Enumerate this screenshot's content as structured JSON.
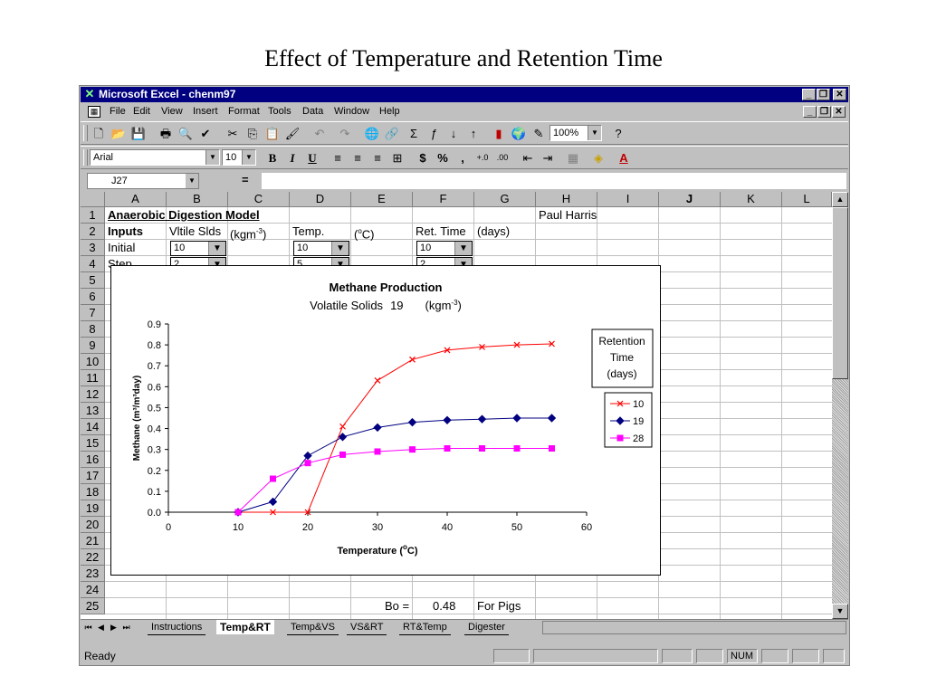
{
  "slide_title": "Effect of Temperature and Retention Time",
  "window": {
    "title": "Microsoft Excel - chenm97"
  },
  "menu": [
    "File",
    "Edit",
    "View",
    "Insert",
    "Format",
    "Tools",
    "Data",
    "Window",
    "Help"
  ],
  "toolbar": {
    "zoom": "100%",
    "font": "Arial",
    "font_size": "10"
  },
  "formula_bar": {
    "name_box": "J27",
    "equals": "="
  },
  "columns": [
    "A",
    "B",
    "C",
    "D",
    "E",
    "F",
    "G",
    "H",
    "I",
    "J",
    "K",
    "L"
  ],
  "active_column": "J",
  "rows": [
    "1",
    "2",
    "3",
    "4",
    "5",
    "6",
    "7",
    "8",
    "9",
    "10",
    "11",
    "12",
    "13",
    "14",
    "15",
    "16",
    "17",
    "18",
    "19",
    "20",
    "21",
    "22",
    "23",
    "24",
    "25"
  ],
  "cells": {
    "a1": "Anaerobic Digestion Model",
    "h1": "Paul Harris",
    "a2": "Inputs",
    "b2": "Vltile Slds",
    "c2_pre": "(kgm",
    "c2_sup": "-3",
    "c2_post": ")",
    "d2": "Temp.",
    "e2_pre": "(",
    "e2_sup": "o",
    "e2_post": "C)",
    "f2": "Ret. Time",
    "g2": "(days)",
    "a3": "Initial",
    "a4": "Step",
    "e25": "Bo =",
    "f25": "0.48",
    "g25": "For Pigs"
  },
  "dropdowns": {
    "b3": "10",
    "d3": "10",
    "f3": "10",
    "b4": "2",
    "d4": "5",
    "f4": "2"
  },
  "sheet_tabs": [
    "Instructions",
    "Temp&RT",
    "Temp&VS",
    "VS&RT",
    "RT&Temp",
    "Digester"
  ],
  "active_sheet": "Temp&RT",
  "status": {
    "text": "Ready",
    "num": "NUM"
  },
  "chart_data": {
    "type": "line",
    "title": "Methane Production",
    "subtitle_label": "Volatile Solids",
    "subtitle_value": "19",
    "subtitle_unit_pre": "(kgm",
    "subtitle_unit_sup": "-3",
    "subtitle_unit_post": ")",
    "xlabel_pre": "Temperature (",
    "xlabel_sup": "o",
    "xlabel_post": "C)",
    "ylabel": "Methane (m³/m³day)",
    "xlim": [
      0,
      60
    ],
    "ylim": [
      0,
      0.9
    ],
    "xticks": [
      "0",
      "10",
      "20",
      "30",
      "40",
      "50",
      "60"
    ],
    "yticks": [
      "0.0",
      "0.1",
      "0.2",
      "0.3",
      "0.4",
      "0.5",
      "0.6",
      "0.7",
      "0.8",
      "0.9"
    ],
    "legend_title": [
      "Retention",
      "Time",
      "(days)"
    ],
    "legend_position": "right",
    "x": [
      10,
      15,
      20,
      25,
      30,
      35,
      40,
      45,
      50,
      55
    ],
    "series": [
      {
        "name": "10",
        "color": "#ff0000",
        "marker": "x",
        "values": [
          0,
          0,
          0,
          0.41,
          0.63,
          0.73,
          0.775,
          0.79,
          0.8,
          0.805
        ]
      },
      {
        "name": "19",
        "color": "#000080",
        "marker": "diamond",
        "values": [
          0,
          0.05,
          0.27,
          0.36,
          0.405,
          0.43,
          0.44,
          0.445,
          0.45,
          0.45
        ]
      },
      {
        "name": "28",
        "color": "#ff00ff",
        "marker": "square",
        "values": [
          0,
          0.16,
          0.235,
          0.275,
          0.29,
          0.3,
          0.305,
          0.305,
          0.305,
          0.305
        ]
      }
    ]
  }
}
